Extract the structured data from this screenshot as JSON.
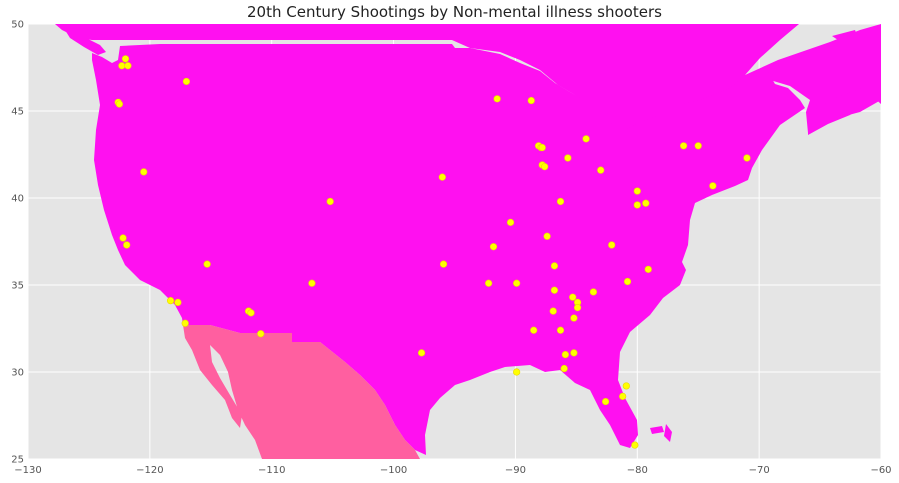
{
  "title": "20th Century Shootings by Non-mental illness shooters",
  "chart_data": {
    "type": "scatter",
    "title": "20th Century Shootings by Non-mental illness shooters",
    "xlim": [
      -130,
      -60
    ],
    "ylim": [
      25,
      50
    ],
    "xticks": [
      -130,
      -120,
      -110,
      -100,
      -90,
      -80,
      -70,
      -60
    ],
    "yticks": [
      25,
      30,
      35,
      40,
      45,
      50
    ],
    "grid": true,
    "colors": {
      "background": "#e5e5e5",
      "usa_land": "#ff10f0",
      "mexico_land": "#ff5fa0",
      "points": "#ffff00",
      "grid": "#ffffff"
    },
    "points": [
      [
        -122.3,
        47.6
      ],
      [
        -122.0,
        48.0
      ],
      [
        -121.8,
        47.6
      ],
      [
        -122.6,
        45.5
      ],
      [
        -122.5,
        45.4
      ],
      [
        -117.0,
        46.7
      ],
      [
        -120.5,
        41.5
      ],
      [
        -122.2,
        37.7
      ],
      [
        -121.9,
        37.3
      ],
      [
        -115.3,
        36.2
      ],
      [
        -118.3,
        34.1
      ],
      [
        -117.7,
        34.0
      ],
      [
        -117.1,
        32.8
      ],
      [
        -111.9,
        33.5
      ],
      [
        -111.7,
        33.4
      ],
      [
        -110.9,
        32.2
      ],
      [
        -106.7,
        35.1
      ],
      [
        -105.2,
        39.8
      ],
      [
        -96.0,
        41.2
      ],
      [
        -95.9,
        36.2
      ],
      [
        -97.7,
        31.1
      ],
      [
        -92.2,
        35.1
      ],
      [
        -91.8,
        37.2
      ],
      [
        -91.5,
        45.7
      ],
      [
        -88.7,
        45.6
      ],
      [
        -90.4,
        38.6
      ],
      [
        -89.9,
        35.1
      ],
      [
        -89.9,
        30.0
      ],
      [
        -88.1,
        43.0
      ],
      [
        -87.9,
        42.9
      ],
      [
        -87.8,
        42.9
      ],
      [
        -87.8,
        41.9
      ],
      [
        -87.6,
        41.8
      ],
      [
        -87.4,
        37.8
      ],
      [
        -86.3,
        39.8
      ],
      [
        -85.7,
        42.3
      ],
      [
        -84.2,
        43.4
      ],
      [
        -83.0,
        41.6
      ],
      [
        -86.8,
        36.1
      ],
      [
        -86.8,
        34.7
      ],
      [
        -86.9,
        33.5
      ],
      [
        -86.3,
        32.4
      ],
      [
        -88.5,
        32.4
      ],
      [
        -85.3,
        34.3
      ],
      [
        -84.9,
        34.0
      ],
      [
        -84.9,
        33.7
      ],
      [
        -85.2,
        33.1
      ],
      [
        -83.6,
        34.6
      ],
      [
        -82.1,
        37.3
      ],
      [
        -80.8,
        35.2
      ],
      [
        -79.1,
        35.9
      ],
      [
        -80.0,
        40.4
      ],
      [
        -80.0,
        39.6
      ],
      [
        -79.3,
        39.7
      ],
      [
        -76.2,
        43.0
      ],
      [
        -75.0,
        43.0
      ],
      [
        -73.8,
        40.7
      ],
      [
        -71.0,
        42.3
      ],
      [
        -85.9,
        31.0
      ],
      [
        -85.2,
        31.1
      ],
      [
        -86.0,
        30.2
      ],
      [
        -82.6,
        28.3
      ],
      [
        -81.2,
        28.6
      ],
      [
        -80.9,
        29.2
      ],
      [
        -80.2,
        25.8
      ]
    ]
  }
}
